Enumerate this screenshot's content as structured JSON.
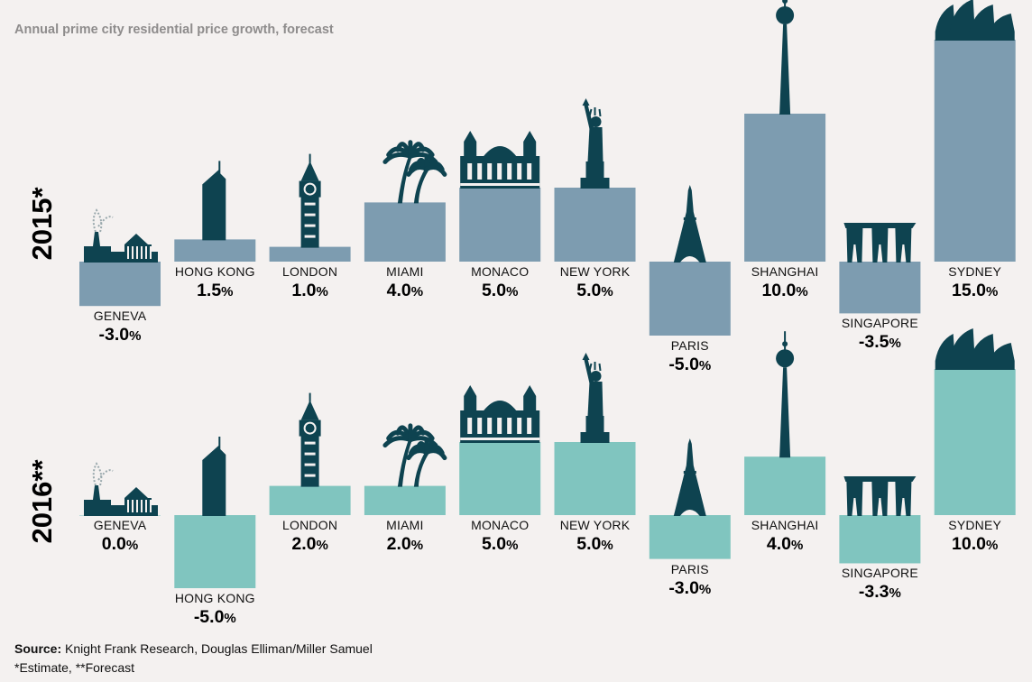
{
  "subtitle": "Annual prime city residential price growth, forecast",
  "footer": {
    "source_label": "Source:",
    "source_text": "Knight Frank Research, Douglas Elliman/Miller Samuel",
    "note": "*Estimate, **Forecast"
  },
  "colors": {
    "bar_2015": "#7d9cb0",
    "bar_2016": "#80c5bf",
    "icon": "#0e4350",
    "background": "#f4f1f0"
  },
  "chart_data": [
    {
      "type": "bar",
      "series_label": "2015*",
      "unit": "%",
      "categories": [
        "GENEVA",
        "HONG KONG",
        "LONDON",
        "MIAMI",
        "MONACO",
        "NEW YORK",
        "PARIS",
        "SHANGHAI",
        "SINGAPORE",
        "SYDNEY"
      ],
      "values": [
        -3.0,
        1.5,
        1.0,
        4.0,
        5.0,
        5.0,
        -5.0,
        10.0,
        -3.5,
        15.0
      ],
      "labels": [
        "-3.0",
        "1.5",
        "1.0",
        "4.0",
        "5.0",
        "5.0",
        "-5.0",
        "10.0",
        "-3.5",
        "15.0"
      ],
      "icons": [
        "geneva-jet-icon",
        "hong-kong-tower-icon",
        "big-ben-icon",
        "palm-trees-icon",
        "monaco-casino-icon",
        "statue-of-liberty-icon",
        "eiffel-tower-icon",
        "pearl-tower-icon",
        "marina-bay-sands-icon",
        "sydney-opera-house-icon"
      ]
    },
    {
      "type": "bar",
      "series_label": "2016**",
      "unit": "%",
      "categories": [
        "GENEVA",
        "HONG KONG",
        "LONDON",
        "MIAMI",
        "MONACO",
        "NEW YORK",
        "PARIS",
        "SHANGHAI",
        "SINGAPORE",
        "SYDNEY"
      ],
      "values": [
        0.0,
        -5.0,
        2.0,
        2.0,
        5.0,
        5.0,
        -3.0,
        4.0,
        -3.3,
        10.0
      ],
      "labels": [
        "0.0",
        "-5.0",
        "2.0",
        "2.0",
        "5.0",
        "5.0",
        "-3.0",
        "4.0",
        "-3.3",
        "10.0"
      ],
      "icons": [
        "geneva-jet-icon",
        "hong-kong-tower-icon",
        "big-ben-icon",
        "palm-trees-icon",
        "monaco-casino-icon",
        "statue-of-liberty-icon",
        "eiffel-tower-icon",
        "pearl-tower-icon",
        "marina-bay-sands-icon",
        "sydney-opera-house-icon"
      ]
    }
  ]
}
